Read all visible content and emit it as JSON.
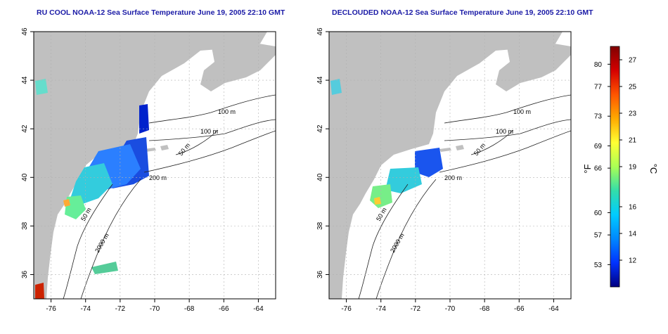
{
  "titles": {
    "left": "RU COOL NOAA-12 Sea Surface Temperature June 19, 2005 22:10 GMT",
    "right": "DECLOUDED NOAA-12 Sea Surface Temperature June 19, 2005 22:10 GMT"
  },
  "axes": {
    "lat_ticks": [
      "46",
      "44",
      "42",
      "40",
      "38",
      "36"
    ],
    "lon_ticks": [
      "-76",
      "-74",
      "-72",
      "-70",
      "-68",
      "-66",
      "-64"
    ],
    "lon_range": [
      -77,
      -63
    ],
    "lat_range": [
      35,
      46
    ]
  },
  "contours": {
    "labels_left": [
      "100 m",
      "100 m",
      "50 m",
      "200 m",
      "50 m",
      "2000 m"
    ],
    "labels_right": [
      "100 m",
      "100 m",
      "50 m",
      "200 m",
      "50 m",
      "2000 m"
    ]
  },
  "colorbar": {
    "f_label": "°F",
    "c_label": "°C",
    "fahrenheit_ticks": [
      "80",
      "77",
      "73",
      "69",
      "66",
      "60",
      "57",
      "53"
    ],
    "celsius_ticks": [
      "27",
      "25",
      "23",
      "21",
      "19",
      "16",
      "14",
      "12"
    ],
    "gradient_colors": [
      "#800000",
      "#d40000",
      "#ff5500",
      "#ffaa00",
      "#ffff33",
      "#aaff55",
      "#33ddaa",
      "#00ccff",
      "#0088ff",
      "#0033ff",
      "#000080"
    ]
  },
  "colors": {
    "land": "#c0c0c0",
    "title": "#1a1aa6",
    "grid": "#b0b0b0"
  }
}
